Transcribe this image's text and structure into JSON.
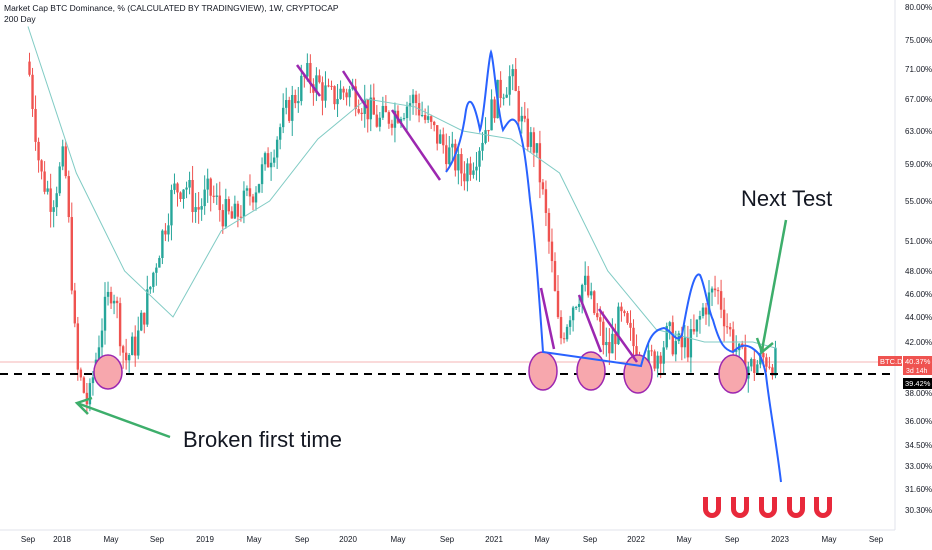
{
  "header": {
    "title": "Market Cap BTC Dominance, % (CALCULATED BY TRADINGVIEW), 1W, CRYPTOCAP",
    "indicator": "200 Day"
  },
  "colors": {
    "up": "#26a69a",
    "down": "#ef5350",
    "ma": "#80cbc4",
    "projection": "#2962ff",
    "purple": "#9c27b0",
    "circle_fill": "#f7a7ad",
    "arrow": "#3dae6b",
    "magnet": "#e8293b",
    "price_line": "#f4b6b6"
  },
  "annotations": {
    "broken_first_time": "Broken first time",
    "next_test": "Next Test"
  },
  "price_labels": {
    "symbol": "BTC.D",
    "current": "40.37%",
    "countdown": "3d 14h",
    "level": "39.42%"
  },
  "chart_data": {
    "type": "candlestick",
    "y_axis": {
      "scale": "log",
      "ticks": [
        "80.00%",
        "75.00%",
        "71.00%",
        "67.00%",
        "63.00%",
        "59.00%",
        "55.00%",
        "51.00%",
        "48.00%",
        "46.00%",
        "44.00%",
        "42.00%",
        "40.00%",
        "38.00%",
        "36.00%",
        "34.50%",
        "33.00%",
        "31.60%",
        "30.30%"
      ]
    },
    "x_axis": {
      "ticks": [
        "Sep",
        "2018",
        "May",
        "Sep",
        "2019",
        "May",
        "Sep",
        "2020",
        "May",
        "Sep",
        "2021",
        "May",
        "Sep",
        "2022",
        "May",
        "Sep",
        "2023",
        "May",
        "Sep"
      ]
    },
    "horizontal_support": 39.42,
    "current_value": 40.37,
    "series": [
      {
        "x": "2017-09",
        "y": 72
      },
      {
        "x": "2017-10",
        "y": 58
      },
      {
        "x": "2017-11",
        "y": 55
      },
      {
        "x": "2017-12",
        "y": 60
      },
      {
        "x": "2018-01",
        "y": 40
      },
      {
        "x": "2018-02",
        "y": 37
      },
      {
        "x": "2018-03",
        "y": 43
      },
      {
        "x": "2018-04",
        "y": 47
      },
      {
        "x": "2018-05",
        "y": 40.5
      },
      {
        "x": "2018-06",
        "y": 42
      },
      {
        "x": "2018-07",
        "y": 46
      },
      {
        "x": "2018-08",
        "y": 51
      },
      {
        "x": "2018-09",
        "y": 56
      },
      {
        "x": "2018-10",
        "y": 57
      },
      {
        "x": "2018-11",
        "y": 54
      },
      {
        "x": "2018-12",
        "y": 56
      },
      {
        "x": "2019-01",
        "y": 54
      },
      {
        "x": "2019-02",
        "y": 53
      },
      {
        "x": "2019-03",
        "y": 55
      },
      {
        "x": "2019-04",
        "y": 57
      },
      {
        "x": "2019-05",
        "y": 60
      },
      {
        "x": "2019-06",
        "y": 64
      },
      {
        "x": "2019-07",
        "y": 67
      },
      {
        "x": "2019-08",
        "y": 70
      },
      {
        "x": "2019-09",
        "y": 69
      },
      {
        "x": "2019-10",
        "y": 67
      },
      {
        "x": "2019-11",
        "y": 68
      },
      {
        "x": "2019-12",
        "y": 68
      },
      {
        "x": "2020-01",
        "y": 66
      },
      {
        "x": "2020-02",
        "y": 64
      },
      {
        "x": "2020-03",
        "y": 65
      },
      {
        "x": "2020-04",
        "y": 66
      },
      {
        "x": "2020-05",
        "y": 67
      },
      {
        "x": "2020-06",
        "y": 64
      },
      {
        "x": "2020-07",
        "y": 62
      },
      {
        "x": "2020-08",
        "y": 60
      },
      {
        "x": "2020-09",
        "y": 58
      },
      {
        "x": "2020-10",
        "y": 60
      },
      {
        "x": "2020-11",
        "y": 64
      },
      {
        "x": "2020-12",
        "y": 68
      },
      {
        "x": "2021-01",
        "y": 70
      },
      {
        "x": "2021-02",
        "y": 63
      },
      {
        "x": "2021-03",
        "y": 61
      },
      {
        "x": "2021-04",
        "y": 52
      },
      {
        "x": "2021-05",
        "y": 42
      },
      {
        "x": "2021-06",
        "y": 45
      },
      {
        "x": "2021-07",
        "y": 47
      },
      {
        "x": "2021-08",
        "y": 44
      },
      {
        "x": "2021-09",
        "y": 41
      },
      {
        "x": "2021-10",
        "y": 44
      },
      {
        "x": "2021-11",
        "y": 42
      },
      {
        "x": "2021-12",
        "y": 40
      },
      {
        "x": "2022-01",
        "y": 41
      },
      {
        "x": "2022-02",
        "y": 42.5
      },
      {
        "x": "2022-03",
        "y": 41.5
      },
      {
        "x": "2022-04",
        "y": 42
      },
      {
        "x": "2022-05",
        "y": 45
      },
      {
        "x": "2022-06",
        "y": 46.5
      },
      {
        "x": "2022-07",
        "y": 43
      },
      {
        "x": "2022-08",
        "y": 40.5
      },
      {
        "x": "2022-09",
        "y": 40
      },
      {
        "x": "2022-10",
        "y": 40.8
      },
      {
        "x": "2022-11",
        "y": 40.37
      }
    ],
    "moving_average": {
      "name": "200 Day",
      "values": [
        {
          "x": "2017-09",
          "y": 77
        },
        {
          "x": "2018-01",
          "y": 58
        },
        {
          "x": "2018-05",
          "y": 48
        },
        {
          "x": "2018-09",
          "y": 44
        },
        {
          "x": "2019-01",
          "y": 52
        },
        {
          "x": "2019-05",
          "y": 55
        },
        {
          "x": "2019-09",
          "y": 62
        },
        {
          "x": "2020-01",
          "y": 67
        },
        {
          "x": "2020-05",
          "y": 66
        },
        {
          "x": "2020-09",
          "y": 63
        },
        {
          "x": "2021-01",
          "y": 62
        },
        {
          "x": "2021-05",
          "y": 58
        },
        {
          "x": "2021-09",
          "y": 48
        },
        {
          "x": "2022-01",
          "y": 43
        },
        {
          "x": "2022-05",
          "y": 42
        },
        {
          "x": "2022-09",
          "y": 42
        },
        {
          "x": "2022-11",
          "y": 41.5
        }
      ]
    },
    "projection": [
      {
        "x": "2020-09",
        "y": 58
      },
      {
        "x": "2020-10",
        "y": 60
      },
      {
        "x": "2020-11",
        "y": 67
      },
      {
        "x": "2020-12",
        "y": 63
      },
      {
        "x": "2021-01",
        "y": 75
      },
      {
        "x": "2021-02",
        "y": 62
      },
      {
        "x": "2021-03",
        "y": 64
      },
      {
        "x": "2021-04",
        "y": 50
      },
      {
        "x": "2021-05",
        "y": 42
      },
      {
        "x": "2022-01",
        "y": 40
      },
      {
        "x": "2022-03",
        "y": 43
      },
      {
        "x": "2022-04",
        "y": 41.5
      },
      {
        "x": "2022-06",
        "y": 47.5
      },
      {
        "x": "2022-08",
        "y": 41
      },
      {
        "x": "2022-10",
        "y": 41.5
      },
      {
        "x": "2022-11",
        "y": 39.5
      },
      {
        "x": "2022-12",
        "y": 36
      },
      {
        "x": "2023-01",
        "y": 32
      }
    ]
  }
}
